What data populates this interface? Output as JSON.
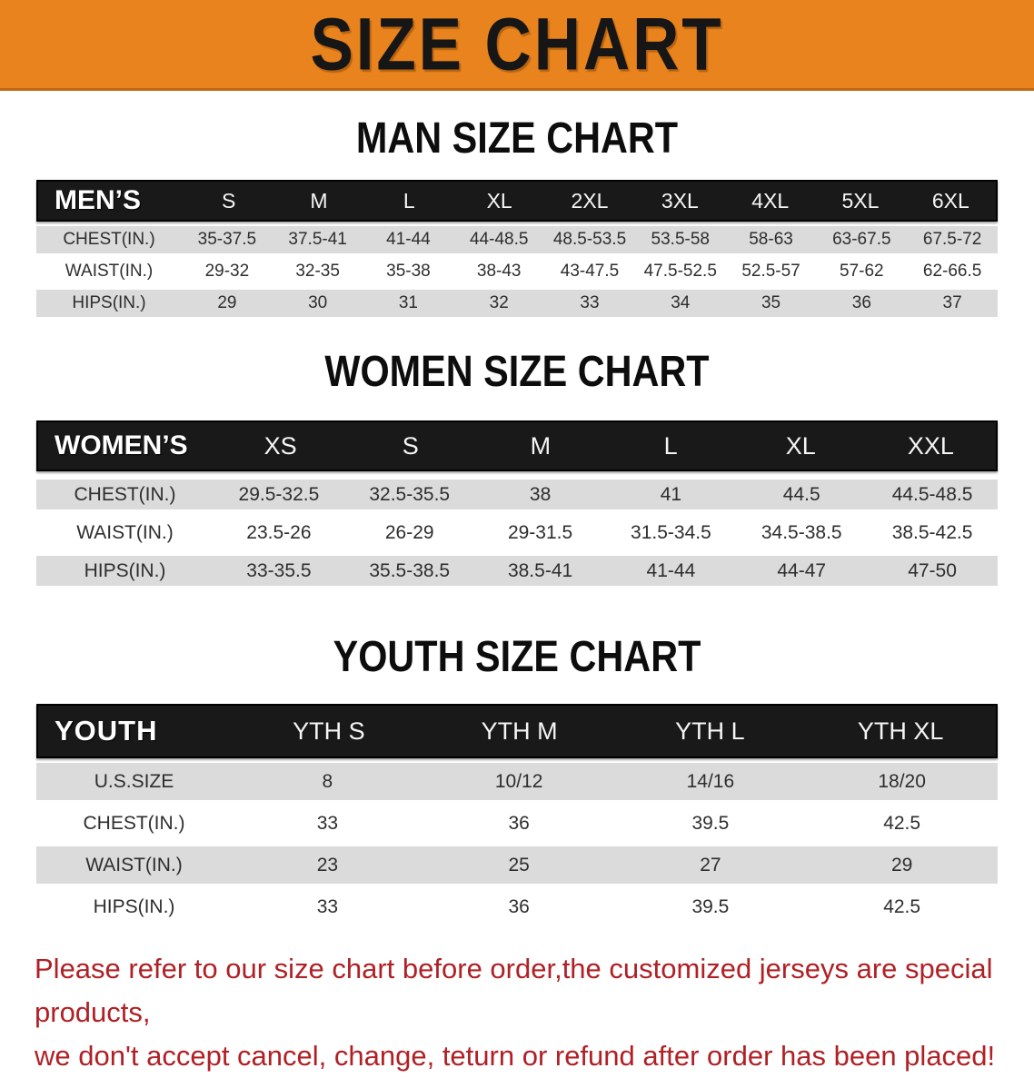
{
  "banner": {
    "title": "SIZE CHART",
    "bg_color": "#E8831E",
    "text_color": "#161616"
  },
  "sections": [
    {
      "heading": "MAN SIZE CHART",
      "table": {
        "header_label": "MEN’S",
        "columns": [
          "S",
          "M",
          "L",
          "XL",
          "2XL",
          "3XL",
          "4XL",
          "5XL",
          "6XL"
        ],
        "rows": [
          {
            "label": "CHEST(IN.)",
            "values": [
              "35-37.5",
              "37.5-41",
              "41-44",
              "44-48.5",
              "48.5-53.5",
              "53.5-58",
              "58-63",
              "63-67.5",
              "67.5-72"
            ]
          },
          {
            "label": "WAIST(IN.)",
            "values": [
              "29-32",
              "32-35",
              "35-38",
              "38-43",
              "43-47.5",
              "47.5-52.5",
              "52.5-57",
              "57-62",
              "62-66.5"
            ]
          },
          {
            "label": "HIPS(IN.)",
            "values": [
              "29",
              "30",
              "31",
              "32",
              "33",
              "34",
              "35",
              "36",
              "37"
            ]
          }
        ]
      }
    },
    {
      "heading": "WOMEN SIZE CHART",
      "table": {
        "header_label": "WOMEN’S",
        "columns": [
          "XS",
          "S",
          "M",
          "L",
          "XL",
          "XXL"
        ],
        "rows": [
          {
            "label": "CHEST(IN.)",
            "values": [
              "29.5-32.5",
              "32.5-35.5",
              "38",
              "41",
              "44.5",
              "44.5-48.5"
            ]
          },
          {
            "label": "WAIST(IN.)",
            "values": [
              "23.5-26",
              "26-29",
              "29-31.5",
              "31.5-34.5",
              "34.5-38.5",
              "38.5-42.5"
            ]
          },
          {
            "label": "HIPS(IN.)",
            "values": [
              "33-35.5",
              "35.5-38.5",
              "38.5-41",
              "41-44",
              "44-47",
              "47-50"
            ]
          }
        ]
      }
    },
    {
      "heading": "YOUTH SIZE CHART",
      "table": {
        "header_label": "YOUTH",
        "columns": [
          "YTH S",
          "YTH M",
          "YTH L",
          "YTH XL"
        ],
        "rows": [
          {
            "label": "U.S.SIZE",
            "values": [
              "8",
              "10/12",
              "14/16",
              "18/20"
            ]
          },
          {
            "label": "CHEST(IN.)",
            "values": [
              "33",
              "36",
              "39.5",
              "42.5"
            ]
          },
          {
            "label": "WAIST(IN.)",
            "values": [
              "23",
              "25",
              "27",
              "29"
            ]
          },
          {
            "label": "HIPS(IN.)",
            "values": [
              "33",
              "36",
              "39.5",
              "42.5"
            ]
          }
        ]
      }
    }
  ],
  "disclaimer": {
    "line1": "Please refer to our size chart before order,the customized jerseys are special products,",
    "line2": "we don't accept cancel, change, teturn or refund after order has been placed!",
    "color": "#B02025"
  }
}
